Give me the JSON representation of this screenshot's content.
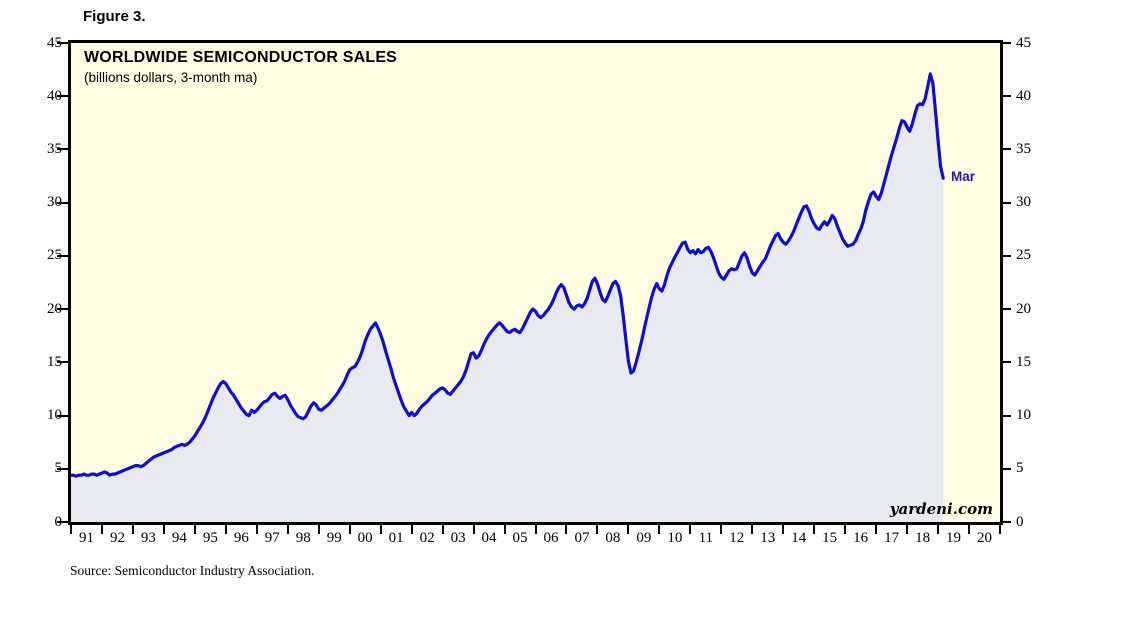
{
  "figure_label": "Figure 3.",
  "chart": {
    "title": "WORLDWIDE SEMICONDUCTOR SALES",
    "subtitle": "(billions dollars, 3-month ma)",
    "watermark": "yardeni.com",
    "last_point_label": "Mar",
    "colors": {
      "line": "#0d0dd6",
      "area_fill": "#e9e9f0",
      "plot_background": "#fffee3",
      "annotation_text": "#1a1acc",
      "axis": "#000000"
    }
  },
  "source_note": "Source: Semiconductor Industry Association.",
  "chart_data": {
    "type": "line",
    "title": "WORLDWIDE SEMICONDUCTOR SALES",
    "subtitle": "(billions dollars, 3-month ma)",
    "frequency": "monthly",
    "x_start": {
      "year": 1991,
      "month": 1
    },
    "x_end": {
      "year": 2019,
      "month": 3
    },
    "xlim_years": [
      1991,
      2021
    ],
    "ylim": [
      0,
      45
    ],
    "y_ticks": [
      0,
      5,
      10,
      15,
      20,
      25,
      30,
      35,
      40,
      45
    ],
    "x_tick_labels": [
      "91",
      "92",
      "93",
      "94",
      "95",
      "96",
      "97",
      "98",
      "99",
      "00",
      "01",
      "02",
      "03",
      "04",
      "05",
      "06",
      "07",
      "08",
      "09",
      "10",
      "11",
      "12",
      "13",
      "14",
      "15",
      "16",
      "17",
      "18",
      "19",
      "20"
    ],
    "grid": false,
    "legend": "none",
    "annotation": {
      "text": "Mar",
      "value": 32.3,
      "date": "2019-03"
    },
    "series": [
      {
        "name": "Worldwide semiconductor sales, 3-month moving average (billions of dollars)",
        "monthly_values_by_year": {
          "1991": [
            4.4,
            4.4,
            4.3,
            4.4,
            4.4,
            4.5,
            4.4,
            4.4,
            4.5,
            4.5,
            4.4,
            4.5
          ],
          "1992": [
            4.6,
            4.7,
            4.6,
            4.4,
            4.5,
            4.5,
            4.6,
            4.7,
            4.8,
            4.9,
            5.0,
            5.1
          ],
          "1993": [
            5.2,
            5.3,
            5.3,
            5.2,
            5.3,
            5.5,
            5.7,
            5.9,
            6.1,
            6.2,
            6.3,
            6.4
          ],
          "1994": [
            6.5,
            6.6,
            6.7,
            6.8,
            7.0,
            7.1,
            7.2,
            7.3,
            7.2,
            7.3,
            7.5,
            7.8
          ],
          "1995": [
            8.1,
            8.5,
            8.9,
            9.3,
            9.8,
            10.4,
            11.0,
            11.6,
            12.1,
            12.6,
            13.0,
            13.2
          ],
          "1996": [
            13.0,
            12.6,
            12.2,
            11.9,
            11.5,
            11.1,
            10.7,
            10.4,
            10.1,
            10.0,
            10.5,
            10.3
          ],
          "1997": [
            10.5,
            10.8,
            11.1,
            11.3,
            11.4,
            11.7,
            12.0,
            12.1,
            11.8,
            11.6,
            11.8,
            11.9
          ],
          "1998": [
            11.5,
            11.0,
            10.6,
            10.2,
            9.9,
            9.8,
            9.7,
            9.9,
            10.4,
            10.9,
            11.2,
            11.0
          ],
          "1999": [
            10.6,
            10.5,
            10.7,
            10.9,
            11.1,
            11.4,
            11.7,
            12.0,
            12.4,
            12.8,
            13.2,
            13.8
          ],
          "2000": [
            14.3,
            14.5,
            14.6,
            15.0,
            15.5,
            16.2,
            17.0,
            17.6,
            18.1,
            18.4,
            18.7,
            18.2
          ],
          "2001": [
            17.6,
            16.9,
            16.0,
            15.2,
            14.4,
            13.5,
            12.8,
            12.1,
            11.4,
            10.8,
            10.4,
            10.0
          ],
          "2002": [
            10.3,
            10.0,
            10.2,
            10.6,
            10.9,
            11.1,
            11.3,
            11.6,
            11.9,
            12.1,
            12.3,
            12.5
          ],
          "2003": [
            12.6,
            12.4,
            12.1,
            12.0,
            12.3,
            12.6,
            12.9,
            13.2,
            13.6,
            14.2,
            15.0,
            15.8
          ],
          "2004": [
            15.9,
            15.4,
            15.6,
            16.1,
            16.7,
            17.2,
            17.6,
            17.9,
            18.2,
            18.5,
            18.7,
            18.5
          ],
          "2005": [
            18.2,
            17.9,
            17.8,
            18.0,
            18.1,
            17.9,
            17.8,
            18.2,
            18.7,
            19.2,
            19.7,
            20.0
          ],
          "2006": [
            19.8,
            19.4,
            19.2,
            19.4,
            19.7,
            20.0,
            20.4,
            20.9,
            21.5,
            22.0,
            22.3,
            22.0
          ],
          "2007": [
            21.3,
            20.6,
            20.2,
            20.0,
            20.3,
            20.4,
            20.2,
            20.5,
            21.0,
            21.8,
            22.6,
            22.9
          ],
          "2008": [
            22.4,
            21.6,
            20.9,
            20.7,
            21.2,
            21.8,
            22.4,
            22.6,
            22.2,
            21.2,
            19.4,
            17.2
          ],
          "2009": [
            15.1,
            14.0,
            14.2,
            15.0,
            15.9,
            16.9,
            18.0,
            19.1,
            20.1,
            21.1,
            21.9,
            22.4
          ],
          "2010": [
            21.9,
            21.7,
            22.3,
            23.2,
            23.9,
            24.4,
            24.9,
            25.3,
            25.8,
            26.2,
            26.3,
            25.6
          ],
          "2011": [
            25.3,
            25.5,
            25.2,
            25.6,
            25.3,
            25.4,
            25.7,
            25.8,
            25.4,
            24.8,
            24.1,
            23.4
          ],
          "2012": [
            23.0,
            22.8,
            23.2,
            23.6,
            23.8,
            23.7,
            23.8,
            24.4,
            25.0,
            25.3,
            24.8,
            24.0
          ],
          "2013": [
            23.4,
            23.2,
            23.6,
            24.0,
            24.4,
            24.7,
            25.3,
            25.9,
            26.4,
            26.9,
            27.1,
            26.6
          ],
          "2014": [
            26.3,
            26.1,
            26.4,
            26.8,
            27.3,
            27.9,
            28.5,
            29.1,
            29.6,
            29.7,
            29.2,
            28.5
          ],
          "2015": [
            28.0,
            27.6,
            27.5,
            27.9,
            28.2,
            27.9,
            28.3,
            28.8,
            28.5,
            27.8,
            27.2,
            26.6
          ],
          "2016": [
            26.2,
            25.9,
            26.0,
            26.1,
            26.4,
            27.0,
            27.5,
            28.2,
            29.3,
            30.1,
            30.8,
            31.0
          ],
          "2017": [
            30.6,
            30.3,
            30.9,
            31.8,
            32.7,
            33.6,
            34.5,
            35.3,
            36.1,
            37.0,
            37.7,
            37.6
          ],
          "2018": [
            37.1,
            36.7,
            37.4,
            38.3,
            39.1,
            39.3,
            39.2,
            39.8,
            40.9,
            42.1,
            41.2,
            38.6
          ],
          "2019": [
            35.8,
            33.4,
            32.3
          ]
        }
      }
    ]
  }
}
